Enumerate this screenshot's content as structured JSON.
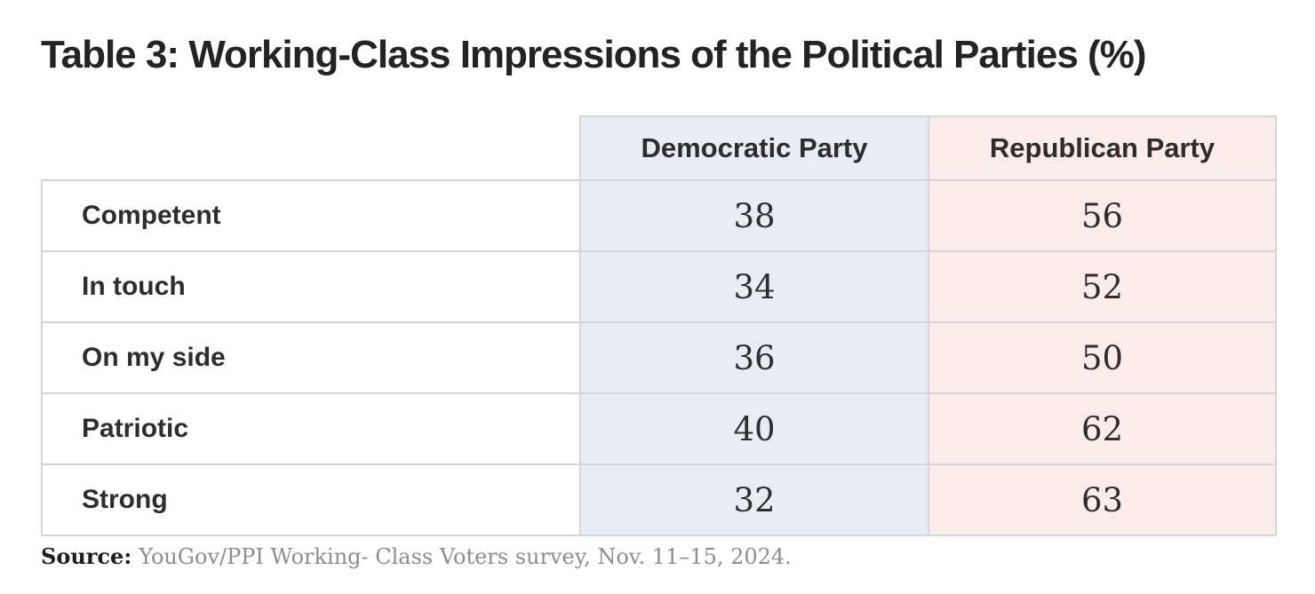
{
  "page": {
    "title": "Table 3: Working-Class Impressions of the Political Parties (%)"
  },
  "source": {
    "label": "Source:",
    "text": "YouGov/PPI Working- Class Voters survey, Nov. 11–15, 2024."
  },
  "colors": {
    "democratic_bg": "#e9edf3",
    "republican_bg": "#f9ecea",
    "cell_border": "#d6d6d6",
    "heading_text": "#232323",
    "value_text": "#2e2e2e",
    "source_muted_text": "#8d8d8d"
  },
  "chart_data": {
    "type": "table",
    "title": "Table 3: Working-Class Impressions of the Political Parties (%)",
    "unit": "%",
    "categories": [
      "Competent",
      "In touch",
      "On my side",
      "Patriotic",
      "Strong"
    ],
    "series": [
      {
        "name": "Democratic Party",
        "values": [
          38,
          34,
          36,
          40,
          32
        ]
      },
      {
        "name": "Republican Party",
        "values": [
          56,
          52,
          50,
          62,
          63
        ]
      }
    ],
    "source": "YouGov/PPI Working- Class Voters survey, Nov. 11–15, 2024."
  }
}
